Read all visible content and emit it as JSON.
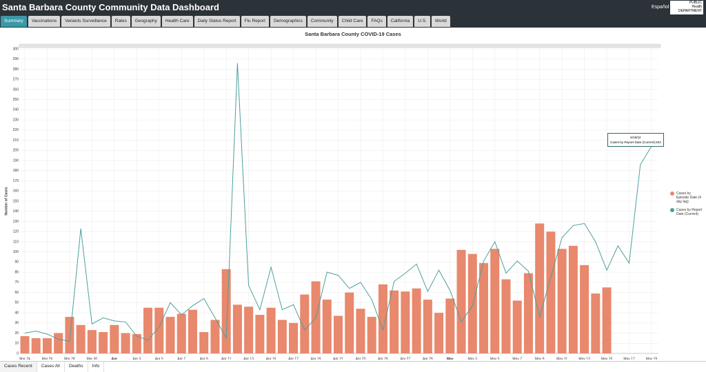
{
  "header": {
    "title": "Santa Barbara County Community Data Dashboard",
    "language": "Español",
    "logo": [
      "PUBLIC",
      "Health",
      "DEPARTMENT"
    ]
  },
  "tabs": [
    "Summary",
    "Vaccinations",
    "Variants Surveillance",
    "Rates",
    "Geography",
    "Health Care",
    "Daily Status Report",
    "Flu Report",
    "Demographics",
    "Community",
    "Child Care",
    "FAQs",
    "California",
    "U.S.",
    "World"
  ],
  "bottom_tabs": [
    "Cases Recent",
    "Cases All",
    "Deaths",
    "Info"
  ],
  "tooltip": {
    "date": "5/19/22",
    "text": "Cases by Report Date (Current):"
  },
  "chart_data": {
    "type": "bar-line",
    "title": "Santa Barbara County COVID-19 Cases",
    "y_label": "Number of Cases",
    "categories": [
      "Mar 24",
      null,
      "Mar 26",
      null,
      "Mar 28",
      null,
      "Mar 30",
      null,
      "Apr",
      null,
      "Apr 3",
      null,
      "Apr 5",
      null,
      "Apr 7",
      null,
      "Apr 9",
      null,
      "Apr 11",
      null,
      "Apr 13",
      null,
      "Apr 15",
      null,
      "Apr 17",
      null,
      "Apr 19",
      null,
      "Apr 21",
      null,
      "Apr 23",
      null,
      "Apr 25",
      null,
      "Apr 27",
      null,
      "Apr 29",
      null,
      "May",
      null,
      "May 3",
      null,
      "May 5",
      null,
      "May 7",
      null,
      "May 9",
      null,
      "May 11",
      null,
      "May 13",
      null,
      "May 15",
      null,
      "May 17",
      null,
      "May 19"
    ],
    "series": [
      {
        "name": "Cases by Episode Date (4 day lag)",
        "color": "#e8886d",
        "type": "bar",
        "values": [
          17,
          15,
          15,
          20,
          36,
          28,
          23,
          21,
          28,
          20,
          19,
          45,
          45,
          36,
          39,
          43,
          21,
          33,
          83,
          48,
          46,
          38,
          45,
          33,
          30,
          58,
          71,
          53,
          37,
          60,
          44,
          36,
          68,
          62,
          61,
          64,
          53,
          40,
          54,
          102,
          98,
          89,
          103,
          73,
          52,
          79,
          128,
          120,
          103,
          106,
          87,
          59,
          65,
          null,
          null,
          null,
          null
        ]
      },
      {
        "name": "Cases by Report Date (Current)",
        "color": "#4c9f9b",
        "type": "line",
        "values": [
          20,
          22,
          19,
          14,
          12,
          123,
          29,
          35,
          32,
          31,
          17,
          13,
          26,
          50,
          38,
          47,
          54,
          35,
          15,
          286,
          67,
          43,
          85,
          43,
          48,
          23,
          35,
          80,
          77,
          64,
          70,
          53,
          23,
          71,
          79,
          88,
          61,
          82,
          62,
          31,
          47,
          91,
          110,
          79,
          91,
          81,
          36,
          75,
          114,
          126,
          128,
          110,
          82,
          106,
          89,
          186,
          204
        ]
      }
    ],
    "ylim": [
      0,
      300
    ],
    "yticks": [
      0,
      10,
      20,
      30,
      40,
      50,
      60,
      70,
      80,
      90,
      100,
      110,
      120,
      130,
      140,
      150,
      160,
      170,
      180,
      190,
      200,
      210,
      220,
      230,
      240,
      250,
      260,
      270,
      280,
      290,
      300
    ],
    "grid": true
  }
}
